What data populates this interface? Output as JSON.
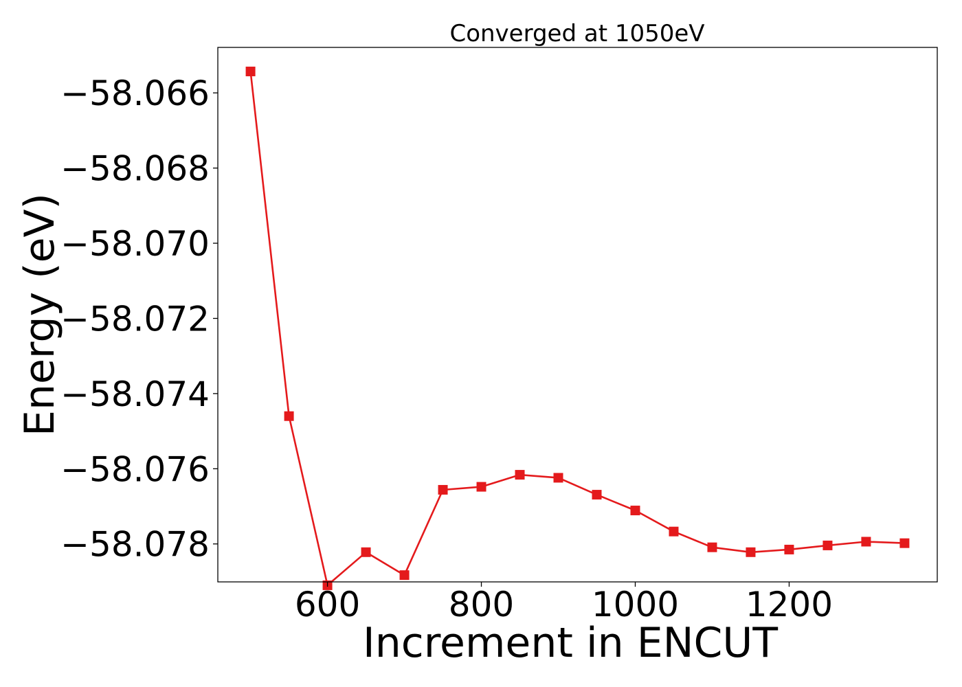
{
  "chart_data": {
    "type": "line",
    "title": "Converged at 1050eV",
    "xlabel": "Increment in ENCUT",
    "ylabel": "Energy (eV)",
    "xlim": [
      457.5,
      1392.5
    ],
    "ylim": [
      -58.07901,
      -58.06479
    ],
    "x_ticks": [
      600,
      800,
      1000,
      1200
    ],
    "x_tick_labels": [
      "600",
      "800",
      "1000",
      "1200"
    ],
    "y_ticks": [
      -58.066,
      -58.068,
      -58.07,
      -58.072,
      -58.074,
      -58.076,
      -58.078
    ],
    "y_tick_labels": [
      "−58.066",
      "−58.068",
      "−58.070",
      "−58.072",
      "−58.074",
      "−58.076",
      "−58.078"
    ],
    "grid": false,
    "series": [
      {
        "color": "#e41a1c",
        "marker": "square",
        "x": [
          500,
          550,
          600,
          650,
          700,
          750,
          800,
          850,
          900,
          950,
          1000,
          1050,
          1100,
          1150,
          1200,
          1250,
          1300,
          1350
        ],
        "y": [
          -58.06543,
          -58.0746,
          -58.0791,
          -58.07822,
          -58.07883,
          -58.07656,
          -58.07648,
          -58.07616,
          -58.07624,
          -58.07669,
          -58.07711,
          -58.07767,
          -58.07809,
          -58.07822,
          -58.07815,
          -58.07804,
          -58.07794,
          -58.07798
        ]
      }
    ]
  }
}
